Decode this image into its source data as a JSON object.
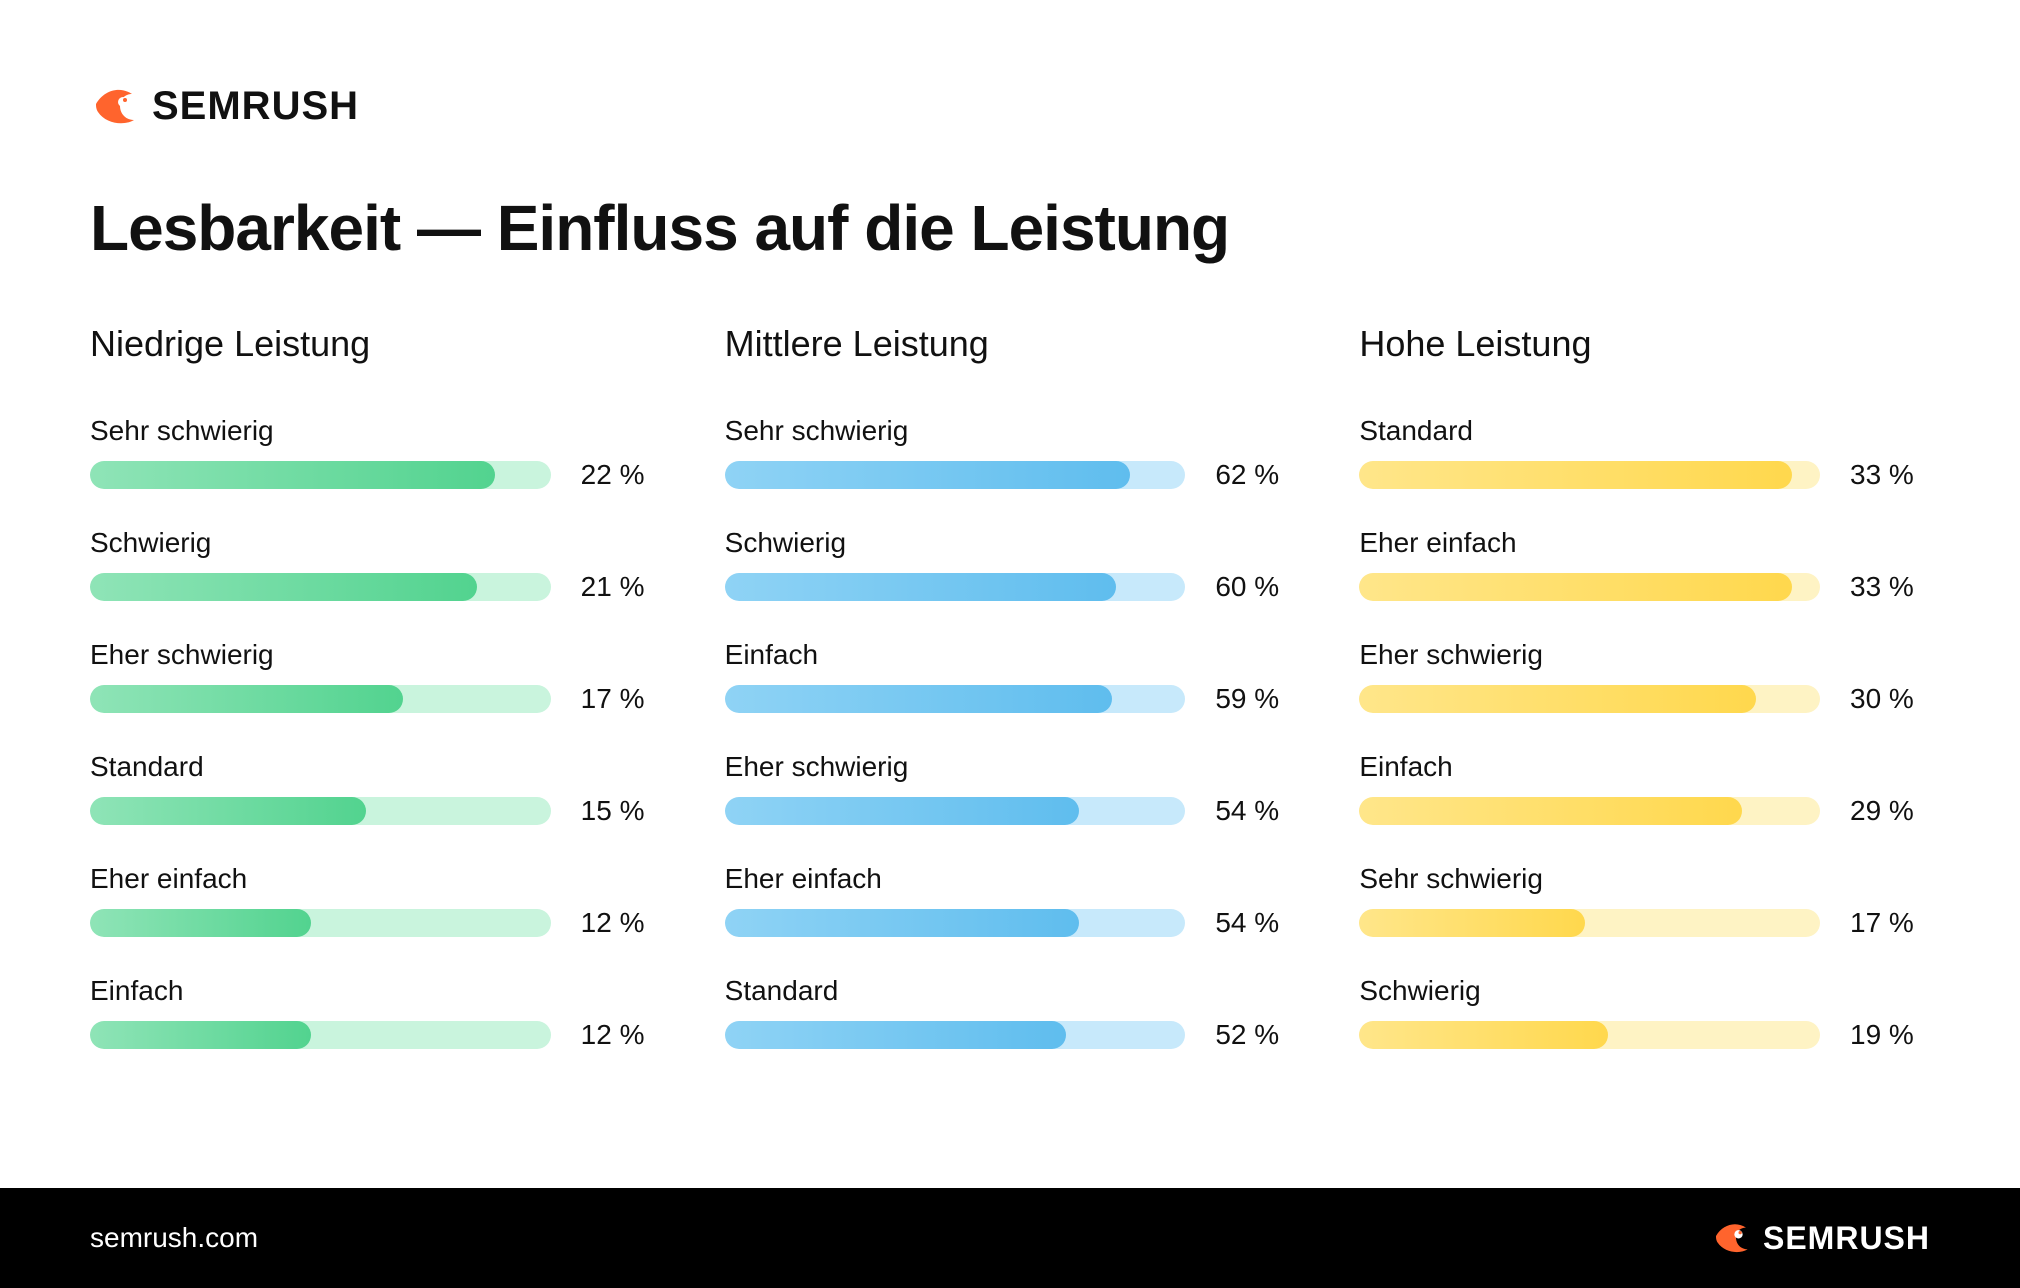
{
  "brand": {
    "name": "SEMRUSH",
    "logo_color": "#ff642d",
    "footer_url": "semrush.com"
  },
  "title": "Lesbarkeit — Einfluss auf die Leistung",
  "title_fontsize": 64,
  "background_color": "#ffffff",
  "text_color": "#111111",
  "bar": {
    "height": 28,
    "radius": 14,
    "max_scale": 25
  },
  "columns": [
    {
      "title": "Niedrige Leistung",
      "track_color": "#c9f4dd",
      "fill_gradient_from": "#8fe4b7",
      "fill_gradient_to": "#52d38f",
      "items": [
        {
          "label": "Sehr schwierig",
          "value": 22,
          "display": "22 %",
          "fill_pct": 88
        },
        {
          "label": "Schwierig",
          "value": 21,
          "display": "21 %",
          "fill_pct": 84
        },
        {
          "label": "Eher schwierig",
          "value": 17,
          "display": "17 %",
          "fill_pct": 68
        },
        {
          "label": "Standard",
          "value": 15,
          "display": "15 %",
          "fill_pct": 60
        },
        {
          "label": "Eher einfach",
          "value": 12,
          "display": "12 %",
          "fill_pct": 48
        },
        {
          "label": "Einfach",
          "value": 12,
          "display": "12 %",
          "fill_pct": 48
        }
      ]
    },
    {
      "title": "Mittlere Leistung",
      "track_color": "#c7e9fb",
      "fill_gradient_from": "#8fd3f5",
      "fill_gradient_to": "#5fbdee",
      "items": [
        {
          "label": "Sehr schwierig",
          "value": 62,
          "display": "62 %",
          "fill_pct": 88
        },
        {
          "label": "Schwierig",
          "value": 60,
          "display": "60 %",
          "fill_pct": 85
        },
        {
          "label": "Einfach",
          "value": 59,
          "display": "59 %",
          "fill_pct": 84
        },
        {
          "label": "Eher schwierig",
          "value": 54,
          "display": "54 %",
          "fill_pct": 77
        },
        {
          "label": "Eher einfach",
          "value": 54,
          "display": "54 %",
          "fill_pct": 77
        },
        {
          "label": "Standard",
          "value": 52,
          "display": "52 %",
          "fill_pct": 74
        }
      ]
    },
    {
      "title": "Hohe Leistung",
      "track_color": "#fef3c4",
      "fill_gradient_from": "#ffe68a",
      "fill_gradient_to": "#ffd84d",
      "items": [
        {
          "label": "Standard",
          "value": 33,
          "display": "33 %",
          "fill_pct": 94
        },
        {
          "label": "Eher einfach",
          "value": 33,
          "display": "33 %",
          "fill_pct": 94
        },
        {
          "label": "Eher schwierig",
          "value": 30,
          "display": "30 %",
          "fill_pct": 86
        },
        {
          "label": "Einfach",
          "value": 29,
          "display": "29 %",
          "fill_pct": 83
        },
        {
          "label": "Sehr schwierig",
          "value": 17,
          "display": "17 %",
          "fill_pct": 49
        },
        {
          "label": "Schwierig",
          "value": 19,
          "display": "19 %",
          "fill_pct": 54
        }
      ]
    }
  ],
  "footer": {
    "background": "#000000",
    "text_color": "#ffffff"
  }
}
